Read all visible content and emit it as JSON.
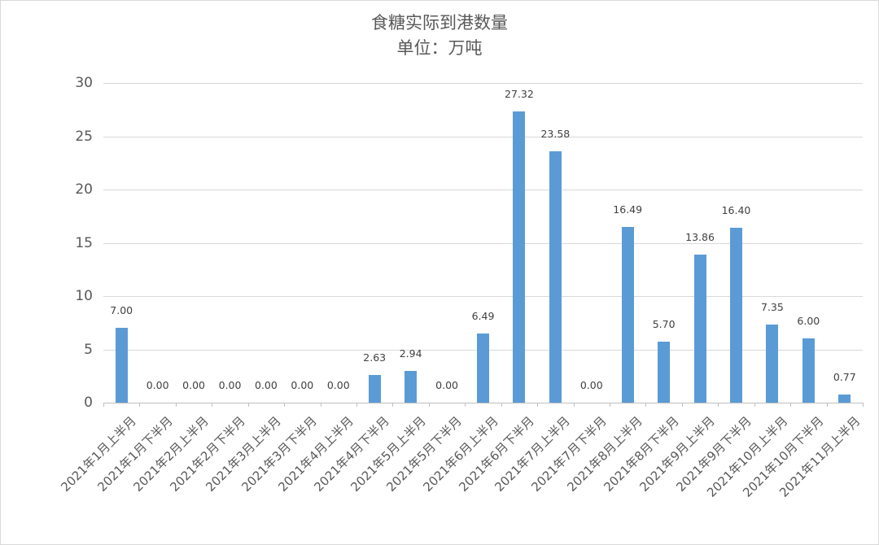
{
  "chart_data": {
    "type": "bar",
    "title": "食糖实际到港数量",
    "subtitle": "单位：万吨",
    "xlabel": "",
    "ylabel": "",
    "ylim": [
      0,
      30
    ],
    "yticks": [
      "0",
      "5",
      "10",
      "15",
      "20",
      "25",
      "30"
    ],
    "grid": true,
    "legend": null,
    "bar_color": "#5b9bd5",
    "categories": [
      "2021年1月上半月",
      "2021年1月下半月",
      "2021年2月上半月",
      "2021年2月下半月",
      "2021年3月上半月",
      "2021年3月下半月",
      "2021年4月上半月",
      "2021年4月下半月",
      "2021年5月上半月",
      "2021年5月下半月",
      "2021年6月上半月",
      "2021年6月下半月",
      "2021年7月上半月",
      "2021年7月下半月",
      "2021年8月上半月",
      "2021年8月下半月",
      "2021年9月上半月",
      "2021年9月下半月",
      "2021年10月上半月",
      "2021年10月下半月",
      "2021年11月上半月"
    ],
    "values": [
      7.0,
      0.0,
      0.0,
      0.0,
      0.0,
      0.0,
      0.0,
      2.63,
      2.94,
      0.0,
      6.49,
      27.32,
      23.58,
      0.0,
      16.49,
      5.7,
      13.86,
      16.4,
      7.35,
      6.0,
      0.77
    ],
    "data_labels": [
      "7.00",
      "0.00",
      "0.00",
      "0.00",
      "0.00",
      "0.00",
      "0.00",
      "2.63",
      "2.94",
      "0.00",
      "6.49",
      "27.32",
      "23.58",
      "0.00",
      "16.49",
      "5.70",
      "13.86",
      "16.40",
      "7.35",
      "6.00",
      "0.77"
    ]
  }
}
